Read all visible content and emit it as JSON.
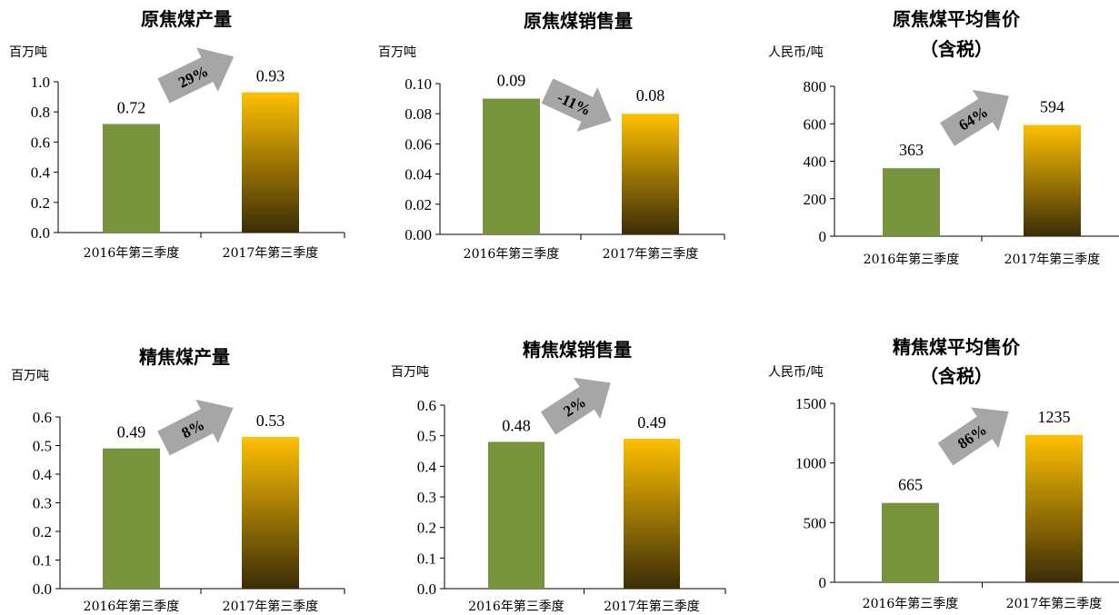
{
  "colors": {
    "bar_2016": "#77933c",
    "bar_2017_top": "#ffc000",
    "bar_2017_bottom": "#3b2d06",
    "arrow": "#a6a6a6",
    "axis": "#000000"
  },
  "chart_data": [
    {
      "type": "bar",
      "title": "原焦煤产量",
      "unit": "百万吨",
      "categories": [
        "2016年第三季度",
        "2017年第三季度"
      ],
      "values": [
        0.72,
        0.93
      ],
      "value_labels": [
        "0.72",
        "0.93"
      ],
      "ylim": [
        0,
        1.0
      ],
      "yticks": [
        "0.0",
        "0.2",
        "0.4",
        "0.6",
        "0.8",
        "1.0"
      ],
      "change": "29%",
      "change_direction": "up"
    },
    {
      "type": "bar",
      "title": "原焦煤销售量",
      "unit": "百万吨",
      "categories": [
        "2016年第三季度",
        "2017年第三季度"
      ],
      "values": [
        0.09,
        0.08
      ],
      "value_labels": [
        "0.09",
        "0.08"
      ],
      "ylim": [
        0,
        0.1
      ],
      "yticks": [
        "0.00",
        "0.02",
        "0.04",
        "0.06",
        "0.08",
        "0.10"
      ],
      "change": "-11%",
      "change_direction": "down"
    },
    {
      "type": "bar",
      "title": "原焦煤平均售价",
      "title2": "（含税）",
      "unit": "人民币/吨",
      "categories": [
        "2016年第三季度",
        "2017年第三季度"
      ],
      "values": [
        363,
        594
      ],
      "value_labels": [
        "363",
        "594"
      ],
      "ylim": [
        0,
        800
      ],
      "yticks": [
        "0",
        "200",
        "400",
        "600",
        "800"
      ],
      "change": "64%",
      "change_direction": "up"
    },
    {
      "type": "bar",
      "title": "精焦煤产量",
      "unit": "百万吨",
      "categories": [
        "2016年第三季度",
        "2017年第三季度"
      ],
      "values": [
        0.49,
        0.53
      ],
      "value_labels": [
        "0.49",
        "0.53"
      ],
      "ylim": [
        0,
        0.6
      ],
      "yticks": [
        "0.0",
        "0.1",
        "0.2",
        "0.3",
        "0.4",
        "0.5",
        "0.6"
      ],
      "change": "8%",
      "change_direction": "up"
    },
    {
      "type": "bar",
      "title": "精焦煤销售量",
      "unit": "百万吨",
      "categories": [
        "2016年第三季度",
        "2017年第三季度"
      ],
      "values": [
        0.48,
        0.49
      ],
      "value_labels": [
        "0.48",
        "0.49"
      ],
      "ylim": [
        0,
        0.6
      ],
      "yticks": [
        "0.0",
        "0.1",
        "0.2",
        "0.3",
        "0.4",
        "0.5",
        "0.6"
      ],
      "change": "2%",
      "change_direction": "up"
    },
    {
      "type": "bar",
      "title": "精焦煤平均售价",
      "title2": "（含税）",
      "unit": "人民币/吨",
      "categories": [
        "2016年第三季度",
        "2017年第三季度"
      ],
      "values": [
        665,
        1235
      ],
      "value_labels": [
        "665",
        "1235"
      ],
      "ylim": [
        0,
        1500
      ],
      "yticks": [
        "0",
        "500",
        "1000",
        "1500"
      ],
      "change": "86%",
      "change_direction": "up"
    }
  ]
}
